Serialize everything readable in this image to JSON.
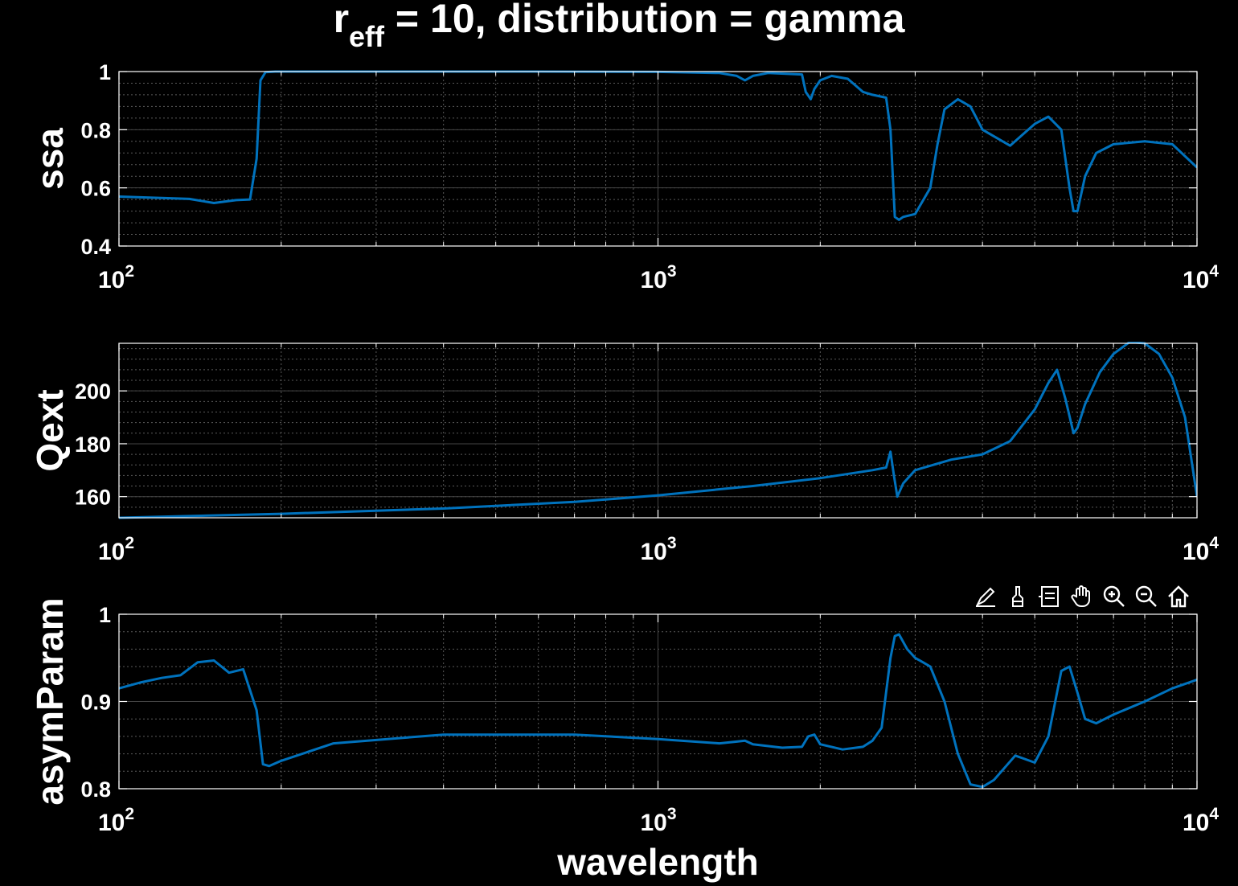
{
  "title": {
    "main": "r",
    "sub": "eff",
    "rest": " = 10, distribution = gamma"
  },
  "toolbar": [
    {
      "name": "edit-plot-icon"
    },
    {
      "name": "brush-icon"
    },
    {
      "name": "legend-icon"
    },
    {
      "name": "pan-hand-icon"
    },
    {
      "name": "zoom-in-icon"
    },
    {
      "name": "zoom-out-icon"
    },
    {
      "name": "home-icon"
    }
  ],
  "colors": {
    "line": "#0072BD",
    "background": "#000000",
    "axes": "#ffffff"
  },
  "chart_data": [
    {
      "type": "line",
      "ylabel": "ssa",
      "xlabel": "",
      "xscale": "log",
      "xlim": [
        100,
        10000
      ],
      "ylim": [
        0.4,
        1
      ],
      "yticks": [
        0.4,
        0.6,
        0.8,
        1
      ],
      "ytick_labels": [
        "0.4",
        "0.6",
        "0.8",
        "1"
      ],
      "xtick_labels": [
        {
          "base": "10",
          "exp": "2"
        },
        {
          "base": "10",
          "exp": "3"
        },
        {
          "base": "10",
          "exp": "4"
        }
      ],
      "grid": true,
      "x": [
        100,
        120,
        135,
        150,
        165,
        175,
        180,
        183,
        187,
        195,
        300,
        600,
        1000,
        1300,
        1400,
        1450,
        1500,
        1600,
        1850,
        1880,
        1920,
        1950,
        2000,
        2100,
        2250,
        2400,
        2500,
        2650,
        2700,
        2750,
        2800,
        2850,
        3000,
        3200,
        3300,
        3400,
        3600,
        3800,
        4000,
        4500,
        5000,
        5300,
        5600,
        5800,
        5900,
        6000,
        6200,
        6500,
        7000,
        8000,
        9000,
        10000
      ],
      "y": [
        0.57,
        0.565,
        0.562,
        0.548,
        0.558,
        0.56,
        0.7,
        0.97,
        0.998,
        1.0,
        1.0,
        1.0,
        0.999,
        0.995,
        0.985,
        0.97,
        0.985,
        0.995,
        0.99,
        0.93,
        0.905,
        0.94,
        0.97,
        0.985,
        0.975,
        0.93,
        0.92,
        0.91,
        0.8,
        0.5,
        0.49,
        0.5,
        0.51,
        0.6,
        0.75,
        0.87,
        0.905,
        0.88,
        0.8,
        0.745,
        0.82,
        0.845,
        0.8,
        0.6,
        0.52,
        0.52,
        0.64,
        0.72,
        0.75,
        0.76,
        0.75,
        0.67
      ]
    },
    {
      "type": "line",
      "ylabel": "Qext",
      "xlabel": "",
      "xscale": "log",
      "xlim": [
        100,
        10000
      ],
      "ylim": [
        152,
        218
      ],
      "yticks": [
        160,
        180,
        200
      ],
      "ytick_labels": [
        "160",
        "180",
        "200"
      ],
      "xtick_labels": [
        {
          "base": "10",
          "exp": "2"
        },
        {
          "base": "10",
          "exp": "3"
        },
        {
          "base": "10",
          "exp": "4"
        }
      ],
      "grid": true,
      "x": [
        100,
        200,
        400,
        700,
        1000,
        1500,
        2000,
        2500,
        2650,
        2700,
        2740,
        2780,
        2850,
        3000,
        3500,
        4000,
        4500,
        5000,
        5300,
        5500,
        5700,
        5900,
        6000,
        6200,
        6600,
        7000,
        7500,
        8000,
        8500,
        9000,
        9500,
        10000
      ],
      "y": [
        152,
        153.5,
        155.5,
        158,
        160.5,
        164,
        167,
        170,
        171,
        177,
        168,
        160,
        165,
        170,
        174,
        176,
        181,
        193,
        203,
        208,
        197,
        184,
        186,
        195,
        207,
        214,
        218.5,
        218,
        214,
        205,
        190,
        160
      ]
    },
    {
      "type": "line",
      "ylabel": "asymParam",
      "xlabel": "wavelength",
      "xscale": "log",
      "xlim": [
        100,
        10000
      ],
      "ylim": [
        0.8,
        1
      ],
      "yticks": [
        0.8,
        0.9,
        1
      ],
      "ytick_labels": [
        "0.8",
        "0.9",
        "1"
      ],
      "xtick_labels": [
        {
          "base": "10",
          "exp": "2"
        },
        {
          "base": "10",
          "exp": "3"
        },
        {
          "base": "10",
          "exp": "4"
        }
      ],
      "grid": true,
      "x": [
        100,
        110,
        120,
        130,
        140,
        150,
        160,
        170,
        180,
        185,
        190,
        200,
        250,
        400,
        700,
        1000,
        1300,
        1400,
        1450,
        1500,
        1700,
        1850,
        1900,
        1950,
        2000,
        2200,
        2400,
        2500,
        2600,
        2700,
        2750,
        2800,
        2900,
        3000,
        3100,
        3200,
        3400,
        3600,
        3800,
        4000,
        4200,
        4600,
        5000,
        5300,
        5600,
        5800,
        6000,
        6200,
        6500,
        7000,
        8000,
        9000,
        10000
      ],
      "y": [
        0.915,
        0.922,
        0.927,
        0.93,
        0.945,
        0.947,
        0.933,
        0.937,
        0.89,
        0.828,
        0.826,
        0.832,
        0.852,
        0.862,
        0.862,
        0.857,
        0.852,
        0.854,
        0.855,
        0.851,
        0.847,
        0.848,
        0.86,
        0.862,
        0.851,
        0.845,
        0.848,
        0.855,
        0.87,
        0.95,
        0.975,
        0.977,
        0.96,
        0.95,
        0.945,
        0.94,
        0.9,
        0.84,
        0.805,
        0.802,
        0.81,
        0.838,
        0.83,
        0.86,
        0.935,
        0.94,
        0.91,
        0.88,
        0.875,
        0.885,
        0.9,
        0.915,
        0.925
      ]
    }
  ]
}
